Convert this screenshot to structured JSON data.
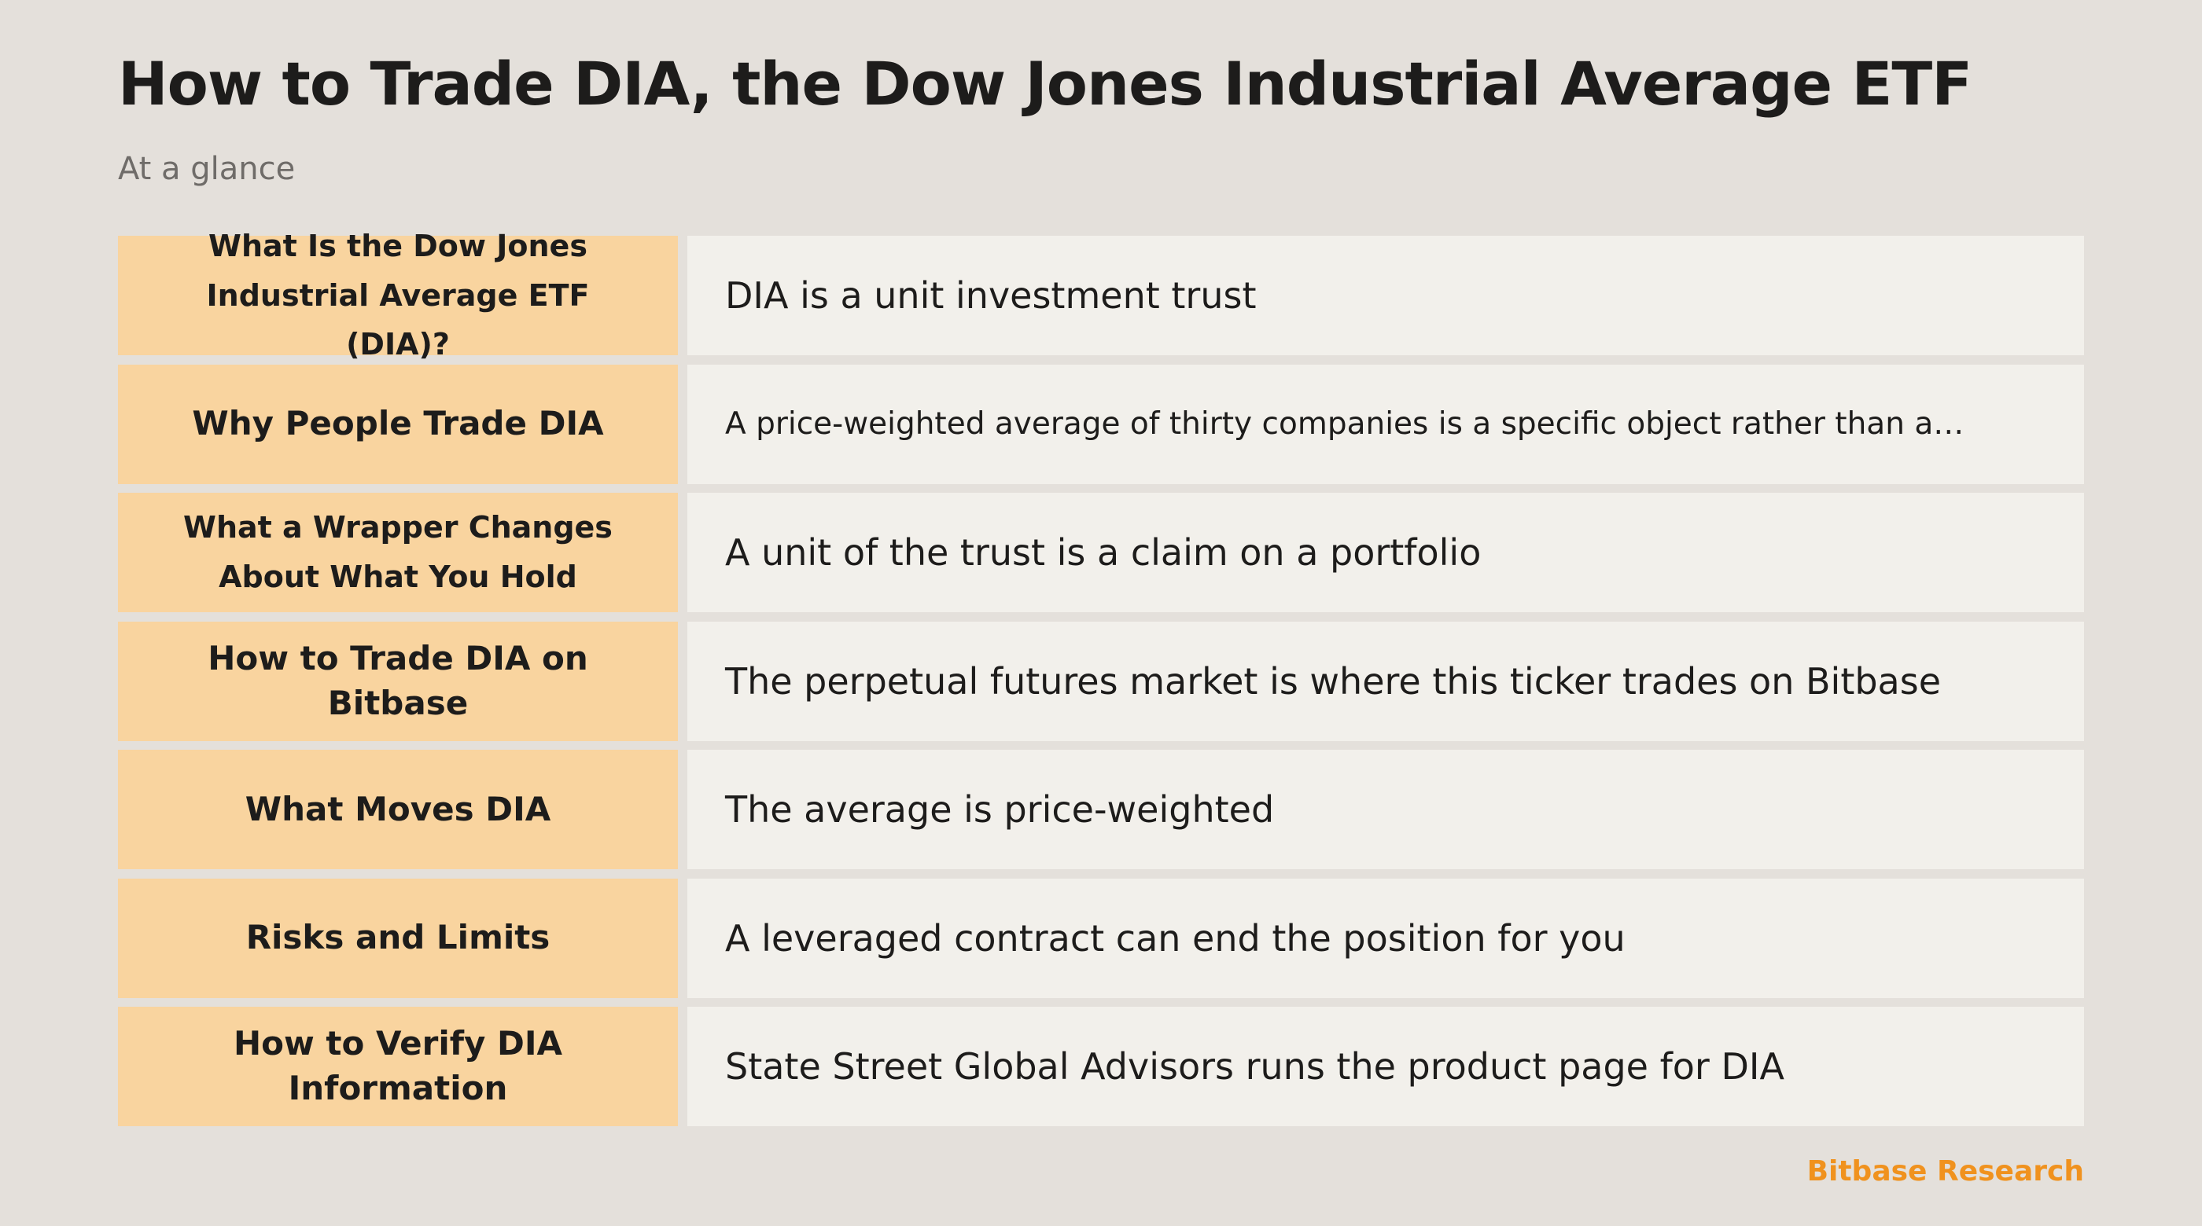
{
  "title": "How to Trade DIA, the Dow Jones Industrial Average ETF",
  "subtitle": "At a glance",
  "rows": [
    {
      "heading": "What Is the Dow Jones Industrial Average ETF (DIA)?",
      "value": "DIA is a unit investment trust"
    },
    {
      "heading": "Why People Trade DIA",
      "value": "A price-weighted average of thirty companies is a specific object rather than a…"
    },
    {
      "heading": "What a Wrapper Changes About What You Hold",
      "value": "A unit of the trust is a claim on a portfolio"
    },
    {
      "heading": "How to Trade DIA on Bitbase",
      "value": "The perpetual futures market is where this ticker trades on Bitbase"
    },
    {
      "heading": "What Moves DIA",
      "value": "The average is price-weighted"
    },
    {
      "heading": "Risks and Limits",
      "value": "A leveraged contract can end the position for you"
    },
    {
      "heading": "How to Verify DIA Information",
      "value": "State Street Global Advisors runs the product page for DIA"
    }
  ],
  "footer": "Bitbase Research",
  "colors": {
    "background": "#e4e0db",
    "heading_cell": "#f9d49f",
    "value_cell": "#f2f0eb",
    "brand_accent": "#f0921e"
  }
}
